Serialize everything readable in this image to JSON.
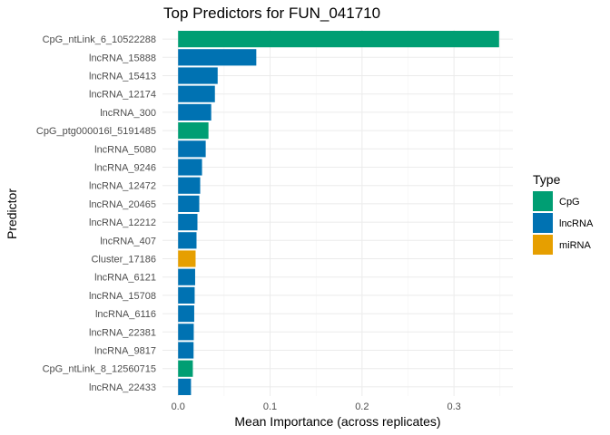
{
  "chart_data": {
    "type": "bar",
    "orientation": "horizontal",
    "title": "Top Predictors for FUN_041710",
    "xlabel": "Mean Importance (across replicates)",
    "ylabel": "Predictor",
    "xlim": [
      0,
      0.35
    ],
    "xticks": [
      0.0,
      0.1,
      0.2,
      0.3
    ],
    "xtick_labels": [
      "0.0",
      "0.1",
      "0.2",
      "0.3"
    ],
    "grid": true,
    "legend": {
      "title": "Type",
      "placement": "right",
      "entries": [
        {
          "label": "CpG",
          "color": "#009E73"
        },
        {
          "label": "lncRNA",
          "color": "#0072B2"
        },
        {
          "label": "miRNA",
          "color": "#E69F00"
        }
      ]
    },
    "bars": [
      {
        "label": "CpG_ntLink_6_10522288",
        "value": 0.349,
        "type": "CpG"
      },
      {
        "label": "lncRNA_15888",
        "value": 0.085,
        "type": "lncRNA"
      },
      {
        "label": "lncRNA_15413",
        "value": 0.043,
        "type": "lncRNA"
      },
      {
        "label": "lncRNA_12174",
        "value": 0.04,
        "type": "lncRNA"
      },
      {
        "label": "lncRNA_300",
        "value": 0.036,
        "type": "lncRNA"
      },
      {
        "label": "CpG_ptg000016l_5191485",
        "value": 0.033,
        "type": "CpG"
      },
      {
        "label": "lncRNA_5080",
        "value": 0.03,
        "type": "lncRNA"
      },
      {
        "label": "lncRNA_9246",
        "value": 0.026,
        "type": "lncRNA"
      },
      {
        "label": "lncRNA_12472",
        "value": 0.024,
        "type": "lncRNA"
      },
      {
        "label": "lncRNA_20465",
        "value": 0.023,
        "type": "lncRNA"
      },
      {
        "label": "lncRNA_12212",
        "value": 0.021,
        "type": "lncRNA"
      },
      {
        "label": "lncRNA_407",
        "value": 0.02,
        "type": "lncRNA"
      },
      {
        "label": "Cluster_17186",
        "value": 0.019,
        "type": "miRNA"
      },
      {
        "label": "lncRNA_6121",
        "value": 0.0185,
        "type": "lncRNA"
      },
      {
        "label": "lncRNA_15708",
        "value": 0.018,
        "type": "lncRNA"
      },
      {
        "label": "lncRNA_6116",
        "value": 0.0175,
        "type": "lncRNA"
      },
      {
        "label": "lncRNA_22381",
        "value": 0.017,
        "type": "lncRNA"
      },
      {
        "label": "lncRNA_9817",
        "value": 0.0168,
        "type": "lncRNA"
      },
      {
        "label": "CpG_ntLink_8_12560715",
        "value": 0.016,
        "type": "CpG"
      },
      {
        "label": "lncRNA_22433",
        "value": 0.014,
        "type": "lncRNA"
      }
    ]
  }
}
